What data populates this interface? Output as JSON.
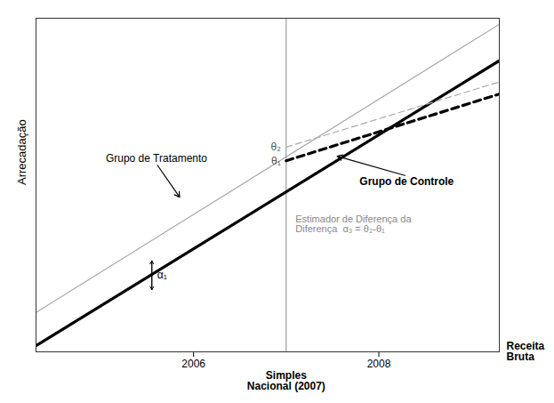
{
  "chart_data": {
    "type": "line",
    "ylabel": "Arrecadação",
    "xlabel": "Receita\nBruta",
    "xlim": [
      2004.3,
      2009.3
    ],
    "ylim": [
      -1,
      10
    ],
    "xticks": [
      2006,
      2008
    ],
    "tick_labels": "x",
    "series": [
      {
        "color": "#aaaaaa",
        "line_style": "solid",
        "x": [
          2004.3,
          2009.3
        ],
        "values": [
          0.3,
          9.8
        ]
      },
      {
        "color": "#000000",
        "line_style": "solid",
        "x": [
          2004.3,
          2009.3
        ],
        "values": [
          -0.8,
          8.6
        ]
      },
      {
        "color": "#aaaaaa",
        "line_style": "dashed",
        "x": [
          2007.0,
          2009.3
        ],
        "values": [
          5.75,
          7.9
        ]
      },
      {
        "color": "#000000",
        "line_style": "dashed",
        "x": [
          2007.0,
          2009.3
        ],
        "values": [
          5.3,
          7.5
        ]
      }
    ],
    "vline": {
      "x": 2007,
      "label": "Simples\nNacional (2007)"
    },
    "theta_labels": [
      {
        "text": "θ₂",
        "y": 5.75
      },
      {
        "text": "θ₁",
        "y": 5.3
      }
    ],
    "brackets": [
      {
        "text": "α₁",
        "x": 2005.55,
        "y_low": 1.05,
        "y_high": 2.0
      }
    ],
    "annotations": [
      {
        "text": "Grupo de Tratamento",
        "x": 2005.6,
        "y": 5.2,
        "arrow_x": 2005.85,
        "arrow_y": 4.1
      },
      {
        "text": "Grupo de Controle",
        "x": 2008.3,
        "y": 4.8,
        "arrow_x": 2007.55,
        "arrow_y": 5.45
      }
    ],
    "note": {
      "text": "Estimador de Diferença da\nDiferença  α₃ = θ₂-θ₁",
      "x": 2007.1,
      "y": 3.5
    }
  }
}
